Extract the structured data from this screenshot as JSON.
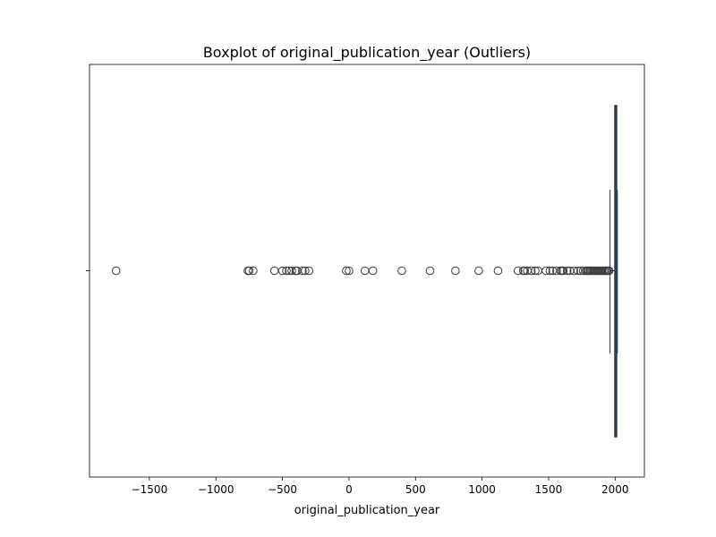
{
  "chart_data": {
    "type": "boxplot",
    "title": "Boxplot of original_publication_year (Outliers)",
    "xlabel": "original_publication_year",
    "ylabel": "",
    "xlim": [
      -1950,
      2220
    ],
    "xticks": [
      -1500,
      -1000,
      -500,
      0,
      500,
      1000,
      1500,
      2000
    ],
    "xtick_labels": [
      "−1500",
      "−1000",
      "−500",
      "0",
      "500",
      "1000",
      "1500",
      "2000"
    ],
    "orientation": "horizontal",
    "grid": false,
    "box": {
      "whisker_low": 1962,
      "q1": 1998,
      "median": 2006,
      "q3": 2011,
      "whisker_high": 2017
    },
    "outliers": [
      -1750,
      -760,
      -750,
      -720,
      -560,
      -500,
      -470,
      -450,
      -430,
      -400,
      -390,
      -350,
      -330,
      -300,
      -20,
      0,
      120,
      180,
      397,
      609,
      800,
      975,
      1120,
      1270,
      1310,
      1320,
      1340,
      1370,
      1400,
      1420,
      1480,
      1510,
      1530,
      1560,
      1590,
      1600,
      1610,
      1640,
      1660,
      1690,
      1720,
      1740,
      1760,
      1780,
      1790,
      1800,
      1810,
      1820,
      1830,
      1840,
      1850,
      1860,
      1870,
      1880,
      1890,
      1900,
      1910,
      1920,
      1930,
      1940,
      1950,
      1955
    ],
    "colors": {
      "box_fill": "#3a4d5c",
      "box_edge": "#2f3e4a",
      "outlier_edge": "#3d3d3d"
    }
  }
}
